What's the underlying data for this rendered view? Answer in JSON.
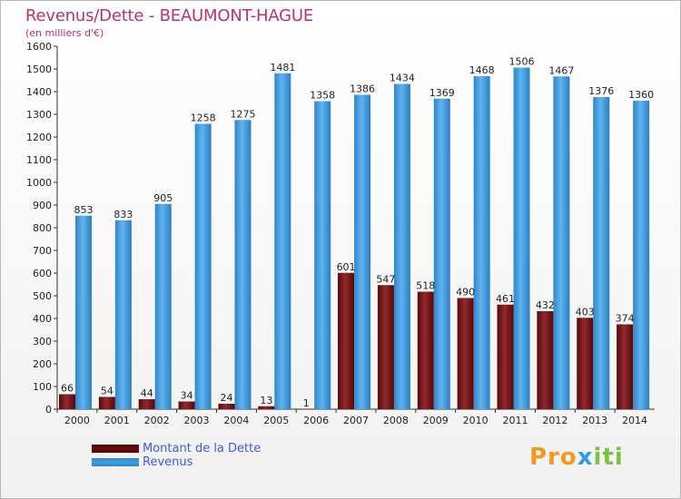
{
  "header": {
    "title": "Revenus/Dette - BEAUMONT-HAGUE",
    "subtitle": "(en milliers d'€)"
  },
  "legend": {
    "items": [
      {
        "label": "Montant de la Dette",
        "color": "#6b0d10"
      },
      {
        "label": "Revenus",
        "color": "#3d9de2"
      }
    ]
  },
  "logo": {
    "text": "Proxiti",
    "parts": [
      "Pro",
      "x",
      "iti"
    ]
  },
  "chart_data": {
    "type": "bar",
    "title": "Revenus/Dette - BEAUMONT-HAGUE",
    "ylabel": "(en milliers d'€)",
    "xlabel": "",
    "categories": [
      "2000",
      "2001",
      "2002",
      "2003",
      "2004",
      "2005",
      "2006",
      "2007",
      "2008",
      "2009",
      "2010",
      "2011",
      "2012",
      "2013",
      "2014"
    ],
    "series": [
      {
        "name": "Montant de la Dette",
        "color": "#7a1a1e",
        "values": [
          66,
          54,
          44,
          34,
          24,
          13,
          1,
          601,
          547,
          518,
          490,
          461,
          432,
          403,
          374
        ]
      },
      {
        "name": "Revenus",
        "color": "#3d9de2",
        "values": [
          853,
          833,
          905,
          1258,
          1275,
          1481,
          1358,
          1386,
          1434,
          1369,
          1468,
          1506,
          1467,
          1376,
          1360
        ]
      }
    ],
    "ylim": [
      0,
      1600
    ],
    "yticks": [
      0,
      100,
      200,
      300,
      400,
      500,
      600,
      700,
      800,
      900,
      1000,
      1100,
      1200,
      1300,
      1400,
      1500,
      1600
    ],
    "grid": false,
    "legend_position": "bottom-left"
  }
}
